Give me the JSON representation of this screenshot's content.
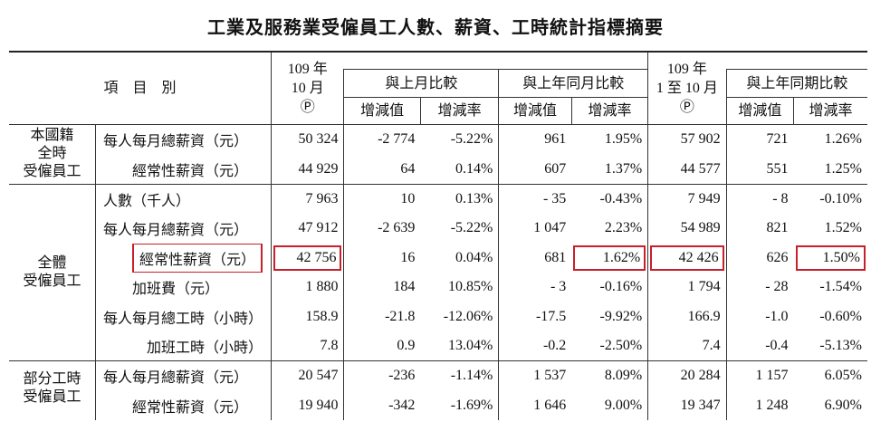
{
  "title": "工業及服務業受僱員工人數、薪資、工時統計指標摘要",
  "header": {
    "item": "項　目　別",
    "current": [
      "109 年",
      "10 月",
      "Ⓟ"
    ],
    "cumulative": [
      "109 年",
      "1 至 10 月",
      "Ⓟ"
    ],
    "groups": [
      "與上月比較",
      "與上年同月比較",
      "與上年同期比較"
    ],
    "subheaders": [
      "增減值",
      "增減率",
      "增減值",
      "增減率",
      "增減值",
      "增減率"
    ]
  },
  "groups": [
    {
      "label": [
        "本國籍",
        "全時",
        "受僱員工"
      ],
      "rows": [
        {
          "item": "每人每月總薪資（元）",
          "cells": [
            "50 324",
            "-2 774",
            "-5.22%",
            "961",
            "1.95%",
            "57 902",
            "721",
            "1.26%"
          ]
        },
        {
          "item": "經常性薪資（元）",
          "cells": [
            "44 929",
            "64",
            "0.14%",
            "607",
            "1.37%",
            "44 577",
            "551",
            "1.25%"
          ]
        }
      ]
    },
    {
      "label": [
        "全體",
        "受僱員工"
      ],
      "rows": [
        {
          "item": "人數（千人）",
          "cells": [
            "7 963",
            "10",
            "0.13%",
            "- 35",
            "-0.43%",
            "7 949",
            "- 8",
            "-0.10%"
          ]
        },
        {
          "item": "每人每月總薪資（元）",
          "cells": [
            "47 912",
            "-2 639",
            "-5.22%",
            "1 047",
            "2.23%",
            "54 989",
            "821",
            "1.52%"
          ]
        },
        {
          "item": "經常性薪資（元）",
          "cells": [
            "42 756",
            "16",
            "0.04%",
            "681",
            "1.62%",
            "42 426",
            "626",
            "1.50%"
          ]
        },
        {
          "item": "加班費（元）",
          "cells": [
            "1 880",
            "184",
            "10.85%",
            "- 3",
            "-0.16%",
            "1 794",
            "- 28",
            "-1.54%"
          ]
        },
        {
          "item": "每人每月總工時（小時）",
          "cells": [
            "158.9",
            "-21.8",
            "-12.06%",
            "-17.5",
            "-9.92%",
            "166.9",
            "-1.0",
            "-0.60%"
          ]
        },
        {
          "item": "加班工時（小時）",
          "cells": [
            "7.8",
            "0.9",
            "13.04%",
            "-0.2",
            "-2.50%",
            "7.4",
            "-0.4",
            "-5.13%"
          ]
        }
      ]
    },
    {
      "label": [
        "部分工時",
        "受僱員工"
      ],
      "rows": [
        {
          "item": "每人每月總薪資（元）",
          "cells": [
            "20 547",
            "-236",
            "-1.14%",
            "1 537",
            "8.09%",
            "20 284",
            "1 157",
            "6.05%"
          ]
        },
        {
          "item": "經常性薪資（元）",
          "cells": [
            "19 940",
            "-342",
            "-1.69%",
            "1 646",
            "9.00%",
            "19 347",
            "1 248",
            "6.90%"
          ]
        }
      ]
    }
  ]
}
